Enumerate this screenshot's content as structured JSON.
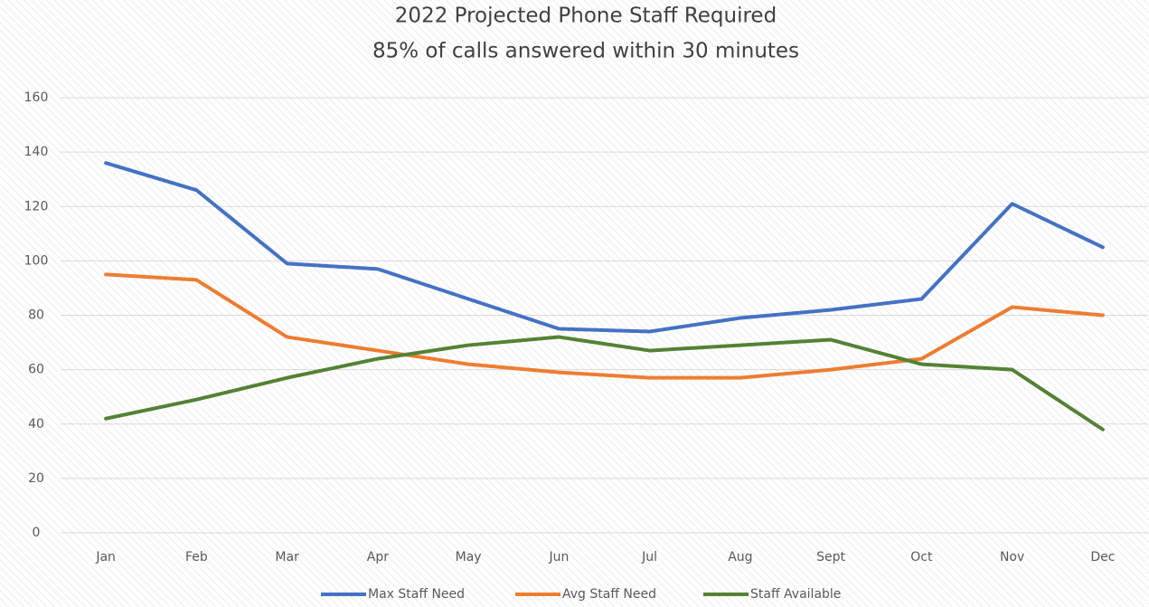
{
  "chart_data": {
    "type": "line",
    "title": "2022 Projected Phone Staff Required",
    "subtitle": "85% of calls answered within 30 minutes",
    "categories": [
      "Jan",
      "Feb",
      "Mar",
      "Apr",
      "May",
      "Jun",
      "Jul",
      "Aug",
      "Sept",
      "Oct",
      "Nov",
      "Dec"
    ],
    "series": [
      {
        "name": "Max Staff Need",
        "color": "#4472c4",
        "values": [
          136,
          126,
          99,
          97,
          86,
          75,
          74,
          79,
          82,
          86,
          121,
          105
        ]
      },
      {
        "name": "Avg Staff Need",
        "color": "#ed7d31",
        "values": [
          95,
          93,
          72,
          67,
          62,
          59,
          57,
          57,
          60,
          64,
          83,
          80
        ]
      },
      {
        "name": "Staff Available",
        "color": "#548235",
        "values": [
          42,
          49,
          57,
          64,
          69,
          72,
          67,
          69,
          71,
          62,
          60,
          38
        ]
      }
    ],
    "ylim": [
      0,
      160
    ],
    "yticks": [
      0,
      20,
      40,
      60,
      80,
      100,
      120,
      140,
      160
    ],
    "grid": true,
    "legend": "bottom"
  }
}
